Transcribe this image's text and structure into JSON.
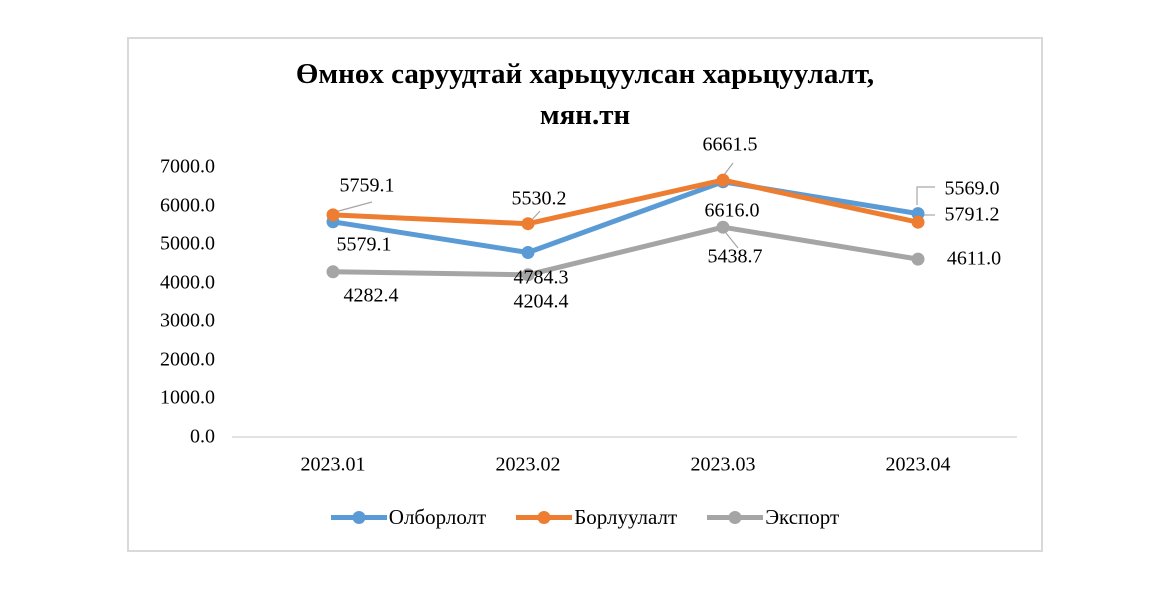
{
  "chart_data": {
    "type": "line",
    "title_lines": [
      "Өмнөх саруудтай харьцуулсан харьцуулалт,",
      "мян.тн"
    ],
    "categories": [
      "2023.01",
      "2023.02",
      "2023.03",
      "2023.04"
    ],
    "series": [
      {
        "name": "Олборлолт",
        "color": "#5B9BD5",
        "values": [
          5579.1,
          4784.3,
          6616.0,
          5791.2
        ],
        "labels": [
          "5579.1",
          "4784.3",
          "6616.0",
          "5791.2"
        ]
      },
      {
        "name": "Борлуулалт",
        "color": "#ED7D31",
        "values": [
          5759.1,
          5530.2,
          6661.5,
          5569.0
        ],
        "labels": [
          "5759.1",
          "5530.2",
          "6661.5",
          "5569.0"
        ]
      },
      {
        "name": "Экспорт",
        "color": "#A5A5A5",
        "values": [
          4282.4,
          4204.4,
          5438.7,
          4611.0
        ],
        "labels": [
          "4282.4",
          "4204.4",
          "5438.7",
          "4611.0"
        ]
      }
    ],
    "ylim": [
      0,
      7000
    ],
    "y_tick_labels": [
      "7000.0",
      "6000.0",
      "5000.0",
      "4000.0",
      "3000.0",
      "2000.0",
      "1000.0",
      "0.0"
    ],
    "grid": false,
    "legend_position": "bottom",
    "colors": {
      "axis_line": "#D9D9D9",
      "frame_border": "#D9D9D9",
      "leader_line": "#A6A6A6",
      "text": "#000000",
      "background": "#FFFFFF"
    }
  }
}
